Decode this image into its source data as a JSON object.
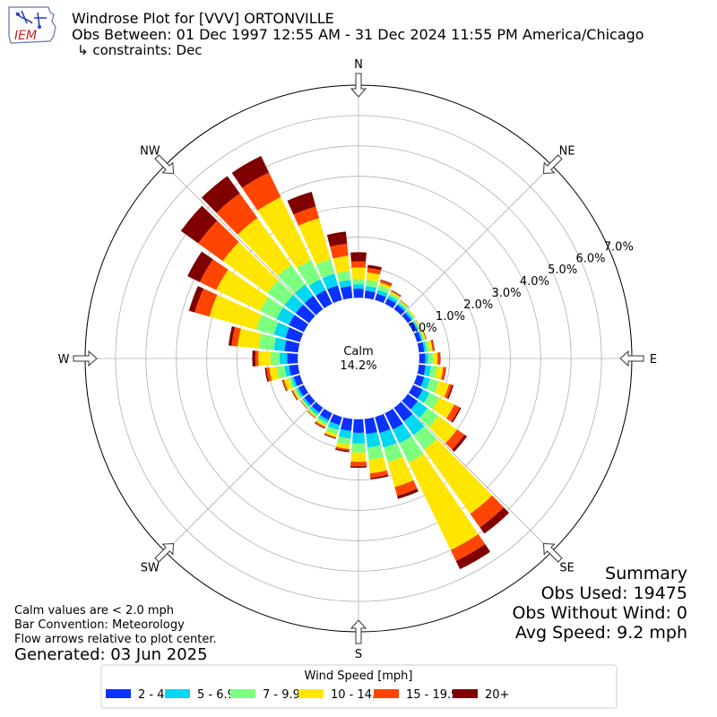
{
  "header": {
    "logo_text": "IEM",
    "title_line1": "Windrose Plot for [VVV] ORTONVILLE",
    "title_line2": "Obs Between: 01 Dec 1997 12:55 AM - 31 Dec 2024 11:55 PM America/Chicago",
    "title_line3": "↳ constraints: Dec"
  },
  "footer_left": {
    "line1": "Calm values are < 2.0 mph",
    "line2": "Bar Convention: Meteorology",
    "line3": "Flow arrows relative to plot center.",
    "generated": "Generated: 03 Jun 2025"
  },
  "summary": {
    "heading": "Summary",
    "obs_used": "Obs Used: 19475",
    "obs_without_wind": "Obs Without Wind: 0",
    "avg_speed": "Avg Speed: 9.2 mph"
  },
  "chart_data": {
    "type": "windrose",
    "calm_label": "Calm",
    "calm_percent": "14.2%",
    "calm_offset": 2.0,
    "rmax": 7.0,
    "radial_ticks": [
      "0.0%",
      "1.0%",
      "2.0%",
      "3.0%",
      "4.0%",
      "5.0%",
      "6.0%",
      "7.0%"
    ],
    "direction_labels": [
      {
        "label": "N",
        "angle": 0
      },
      {
        "label": "NE",
        "angle": 45
      },
      {
        "label": "E",
        "angle": 90
      },
      {
        "label": "SE",
        "angle": 135
      },
      {
        "label": "S",
        "angle": 180
      },
      {
        "label": "SW",
        "angle": 225
      },
      {
        "label": "W",
        "angle": 270
      },
      {
        "label": "NW",
        "angle": 315
      }
    ],
    "legend_title": "Wind Speed [mph]",
    "bins": [
      {
        "label": "2 - 4.9",
        "color": "#0a32ff"
      },
      {
        "label": "5 - 6.9",
        "color": "#00d7f0"
      },
      {
        "label": "7 - 9.9",
        "color": "#7dff80"
      },
      {
        "label": "10 - 14.9",
        "color": "#ffe600"
      },
      {
        "label": "15 - 19.9",
        "color": "#ff4500"
      },
      {
        "label": "20+",
        "color": "#800000"
      }
    ],
    "directions": [
      0,
      10,
      20,
      30,
      40,
      50,
      60,
      70,
      80,
      90,
      100,
      110,
      120,
      130,
      140,
      150,
      160,
      170,
      180,
      190,
      200,
      210,
      220,
      230,
      240,
      250,
      260,
      270,
      280,
      290,
      300,
      310,
      320,
      330,
      340,
      350
    ],
    "cumulative": [
      [
        0.3,
        0.45,
        0.62,
        1.0,
        1.2,
        1.5
      ],
      [
        0.25,
        0.4,
        0.6,
        0.85,
        1.0,
        1.1
      ],
      [
        0.22,
        0.35,
        0.5,
        0.6,
        0.68,
        0.7
      ],
      [
        0.2,
        0.3,
        0.4,
        0.45,
        0.48,
        0.5
      ],
      [
        0.18,
        0.25,
        0.32,
        0.35,
        0.36,
        0.37
      ],
      [
        0.15,
        0.22,
        0.28,
        0.3,
        0.31,
        0.31
      ],
      [
        0.15,
        0.2,
        0.25,
        0.28,
        0.29,
        0.29
      ],
      [
        0.15,
        0.2,
        0.25,
        0.3,
        0.32,
        0.33
      ],
      [
        0.18,
        0.25,
        0.35,
        0.45,
        0.5,
        0.52
      ],
      [
        0.2,
        0.3,
        0.45,
        0.6,
        0.68,
        0.7
      ],
      [
        0.22,
        0.4,
        0.6,
        0.8,
        0.88,
        0.9
      ],
      [
        0.25,
        0.45,
        0.75,
        1.1,
        1.2,
        1.25
      ],
      [
        0.35,
        0.6,
        0.95,
        1.5,
        1.7,
        1.75
      ],
      [
        0.4,
        0.8,
        1.25,
        2.0,
        2.3,
        2.4
      ],
      [
        0.55,
        1.1,
        1.7,
        4.3,
        4.85,
        5.1
      ],
      [
        0.6,
        1.1,
        1.8,
        5.0,
        5.4,
        5.7
      ],
      [
        0.55,
        1.05,
        1.55,
        2.4,
        2.7,
        2.8
      ],
      [
        0.5,
        0.95,
        1.35,
        1.8,
        1.95,
        2.0
      ],
      [
        0.45,
        0.8,
        1.1,
        1.4,
        1.55,
        1.6
      ],
      [
        0.4,
        0.65,
        0.85,
        1.0,
        1.05,
        1.1
      ],
      [
        0.28,
        0.45,
        0.6,
        0.7,
        0.72,
        0.75
      ],
      [
        0.25,
        0.35,
        0.45,
        0.5,
        0.55,
        0.57
      ],
      [
        0.2,
        0.3,
        0.36,
        0.4,
        0.42,
        0.43
      ],
      [
        0.2,
        0.28,
        0.32,
        0.35,
        0.36,
        0.37
      ],
      [
        0.2,
        0.28,
        0.34,
        0.4,
        0.43,
        0.45
      ],
      [
        0.22,
        0.3,
        0.4,
        0.55,
        0.6,
        0.62
      ],
      [
        0.3,
        0.45,
        0.7,
        0.95,
        1.05,
        1.1
      ],
      [
        0.35,
        0.6,
        0.9,
        1.3,
        1.4,
        1.5
      ],
      [
        0.45,
        0.8,
        1.3,
        2.0,
        2.2,
        2.3
      ],
      [
        0.5,
        0.9,
        1.5,
        3.1,
        3.6,
        3.8
      ],
      [
        0.55,
        1.0,
        1.6,
        3.2,
        3.8,
        4.25
      ],
      [
        0.55,
        1.0,
        1.7,
        3.5,
        4.5,
        5.2
      ],
      [
        0.55,
        1.0,
        1.8,
        3.7,
        4.7,
        5.4
      ],
      [
        0.5,
        0.9,
        1.6,
        3.9,
        4.8,
        5.4
      ],
      [
        0.5,
        0.9,
        1.4,
        2.8,
        3.2,
        3.7
      ],
      [
        0.4,
        0.6,
        0.9,
        1.4,
        1.8,
        2.2
      ]
    ]
  }
}
